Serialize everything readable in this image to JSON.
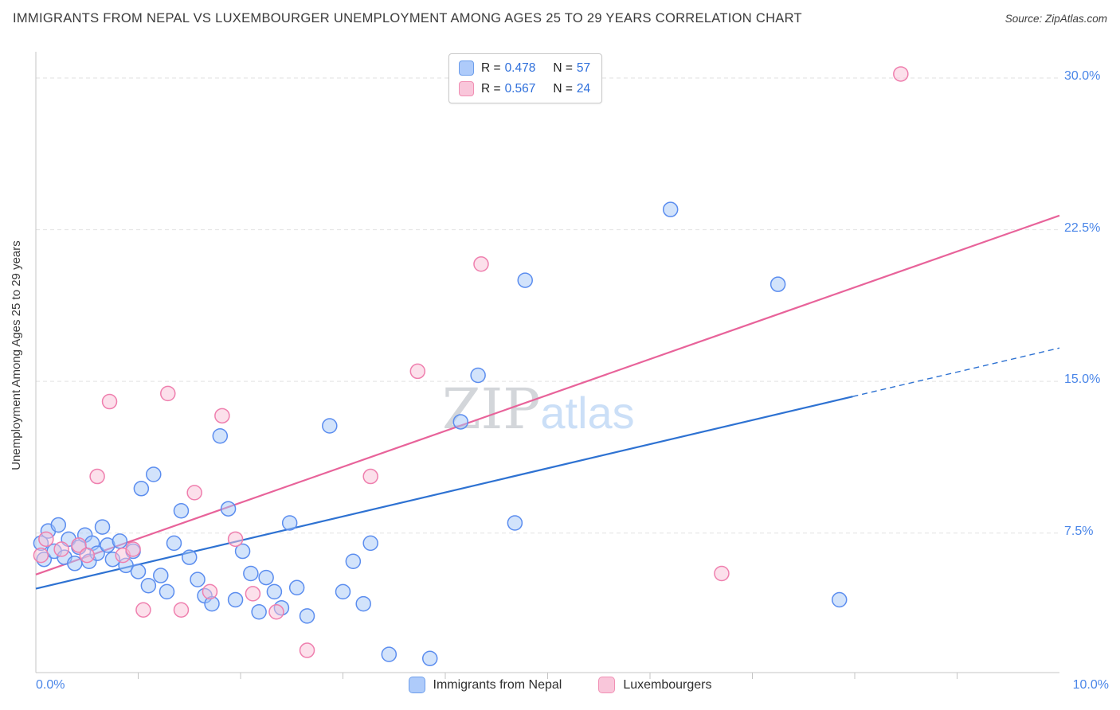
{
  "header": {
    "title": "IMMIGRANTS FROM NEPAL VS LUXEMBOURGER UNEMPLOYMENT AMONG AGES 25 TO 29 YEARS CORRELATION CHART",
    "source": "Source: ZipAtlas.com"
  },
  "watermark": {
    "zip": "ZIP",
    "atlas": "atlas"
  },
  "legend_box": {
    "rows": [
      {
        "r_label": "R = ",
        "r_value": "0.478",
        "n_label": "N = ",
        "n_value": "57"
      },
      {
        "r_label": "R = ",
        "r_value": "0.567",
        "n_label": "N = ",
        "n_value": "24"
      }
    ]
  },
  "colors": {
    "accent_blue": "#4a86e8",
    "nepal_fill": "#a6c8f7",
    "nepal_stroke": "#5b8def",
    "lux_fill": "#f9c2d8",
    "lux_stroke": "#ef7fae",
    "nepal_trend": "#2e72d2",
    "lux_trend": "#e8639a",
    "gridline": "#e2e2e2",
    "axis": "#c4c4c4"
  },
  "chart_data": {
    "type": "scatter",
    "title": "Immigrants from Nepal vs Luxembourger Unemployment Among Ages 25 to 29 years",
    "xlabel": "",
    "ylabel": "Unemployment Among Ages 25 to 29 years",
    "xlim": [
      0,
      10
    ],
    "ylim": [
      0.6,
      31.3
    ],
    "grid": "horizontal-dashed",
    "legend_position": "bottom-center",
    "gridlines_y": [
      7.5,
      15,
      22.5,
      30
    ],
    "x_ticks": [
      {
        "value": 0,
        "label": "0.0%"
      },
      {
        "value": 10,
        "label": "10.0%"
      }
    ],
    "y_ticks_right": [
      {
        "value": 30,
        "label": "30.0%"
      },
      {
        "value": 22.5,
        "label": "22.5%"
      },
      {
        "value": 15,
        "label": "15.0%"
      },
      {
        "value": 7.5,
        "label": "7.5%"
      }
    ],
    "series": [
      {
        "name": "Immigrants from Nepal",
        "R": 0.478,
        "N": 57,
        "fill": "#a6c8f7",
        "stroke": "#5b8def",
        "points": [
          [
            0.05,
            7.0
          ],
          [
            0.08,
            6.2
          ],
          [
            0.12,
            7.6
          ],
          [
            0.18,
            6.6
          ],
          [
            0.22,
            7.9
          ],
          [
            0.28,
            6.3
          ],
          [
            0.32,
            7.2
          ],
          [
            0.38,
            6.0
          ],
          [
            0.42,
            6.8
          ],
          [
            0.48,
            7.4
          ],
          [
            0.52,
            6.1
          ],
          [
            0.55,
            7.0
          ],
          [
            0.6,
            6.5
          ],
          [
            0.65,
            7.8
          ],
          [
            0.7,
            6.9
          ],
          [
            0.75,
            6.2
          ],
          [
            0.82,
            7.1
          ],
          [
            0.88,
            5.9
          ],
          [
            0.95,
            6.6
          ],
          [
            1.0,
            5.6
          ],
          [
            1.03,
            9.7
          ],
          [
            1.1,
            4.9
          ],
          [
            1.15,
            10.4
          ],
          [
            1.22,
            5.4
          ],
          [
            1.28,
            4.6
          ],
          [
            1.35,
            7.0
          ],
          [
            1.42,
            8.6
          ],
          [
            1.5,
            6.3
          ],
          [
            1.58,
            5.2
          ],
          [
            1.65,
            4.4
          ],
          [
            1.72,
            4.0
          ],
          [
            1.8,
            12.3
          ],
          [
            1.88,
            8.7
          ],
          [
            1.95,
            4.2
          ],
          [
            2.02,
            6.6
          ],
          [
            2.1,
            5.5
          ],
          [
            2.18,
            3.6
          ],
          [
            2.25,
            5.3
          ],
          [
            2.33,
            4.6
          ],
          [
            2.4,
            3.8
          ],
          [
            2.48,
            8.0
          ],
          [
            2.55,
            4.8
          ],
          [
            2.65,
            3.4
          ],
          [
            2.87,
            12.8
          ],
          [
            3.0,
            4.6
          ],
          [
            3.1,
            6.1
          ],
          [
            3.2,
            4.0
          ],
          [
            3.27,
            7.0
          ],
          [
            3.45,
            1.5
          ],
          [
            3.85,
            1.3
          ],
          [
            4.15,
            13.0
          ],
          [
            4.32,
            15.3
          ],
          [
            4.68,
            8.0
          ],
          [
            4.78,
            20.0
          ],
          [
            6.2,
            23.5
          ],
          [
            7.25,
            19.8
          ],
          [
            7.85,
            4.2
          ]
        ]
      },
      {
        "name": "Luxembourgers",
        "R": 0.567,
        "N": 24,
        "fill": "#f9c2d8",
        "stroke": "#ef7fae",
        "points": [
          [
            0.05,
            6.4
          ],
          [
            0.1,
            7.2
          ],
          [
            0.25,
            6.7
          ],
          [
            0.42,
            6.9
          ],
          [
            0.5,
            6.4
          ],
          [
            0.6,
            10.3
          ],
          [
            0.72,
            14.0
          ],
          [
            0.85,
            6.4
          ],
          [
            0.95,
            6.7
          ],
          [
            1.05,
            3.7
          ],
          [
            1.29,
            14.4
          ],
          [
            1.42,
            3.7
          ],
          [
            1.55,
            9.5
          ],
          [
            1.7,
            4.6
          ],
          [
            1.82,
            13.3
          ],
          [
            1.95,
            7.2
          ],
          [
            2.12,
            4.5
          ],
          [
            2.35,
            3.6
          ],
          [
            2.65,
            1.7
          ],
          [
            3.27,
            10.3
          ],
          [
            3.73,
            15.5
          ],
          [
            4.35,
            20.8
          ],
          [
            6.7,
            5.5
          ],
          [
            8.45,
            30.2
          ]
        ]
      }
    ],
    "trendlines": [
      {
        "series": "Immigrants from Nepal",
        "color": "#2e72d2",
        "x1": 0,
        "y1": 4.75,
        "x2": 7.98,
        "y2": 14.25,
        "x2_dashed": 10,
        "y2_dashed": 16.65
      },
      {
        "series": "Luxembourgers",
        "color": "#e8639a",
        "x1": 0,
        "y1": 5.45,
        "x2": 10,
        "y2": 23.2
      }
    ]
  }
}
